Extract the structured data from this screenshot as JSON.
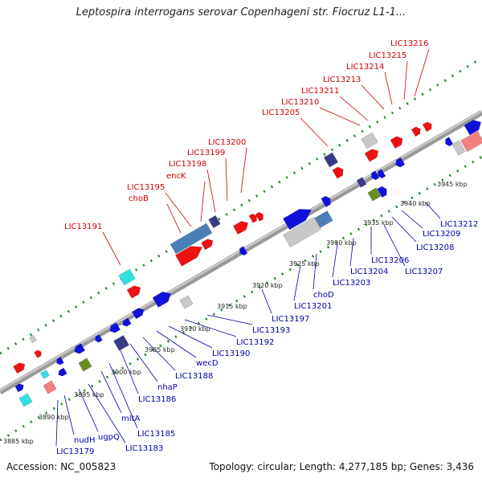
{
  "title": "Leptospira interrogans serovar Copenhageni str. Fiocruz L1-1...",
  "footer": {
    "accession": "Accession: NC_005823",
    "topology": "Topology: circular; Length: 4,277,185 bp; Genes: 3,436"
  },
  "colors": {
    "forward_label": "#cc0000",
    "reverse_label": "#0000aa",
    "backbone": "#999999",
    "tick": "#1a8a1a",
    "gene_red": "#ee1111",
    "gene_blue": "#1010dd",
    "gene_steel": "#4a7fb5",
    "gene_silver": "#c8c8c8",
    "gene_cyan": "#33e0e0",
    "gene_olive": "#6b8e23",
    "gene_navy": "#3a3a8a",
    "gene_pink": "#f08080"
  },
  "scale_ticks": [
    "3885 kbp",
    "3890 kbp",
    "3895 kbp",
    "3900 kbp",
    "3905 kbp",
    "3910 kbp",
    "3915 kbp",
    "3920 kbp",
    "3925 kbp",
    "3930 kbp",
    "3935 kbp",
    "3940 kbp",
    "3945 kbp"
  ],
  "forward_labels": [
    "LIC13191",
    "choB",
    "LIC13195",
    "encK",
    "LIC13198",
    "LIC13199",
    "LIC13200",
    "LIC13205",
    "LIC13210",
    "LIC13211",
    "LIC13213",
    "LIC13214",
    "LIC13215",
    "LIC13216"
  ],
  "reverse_labels": [
    "LIC13179",
    "nudH",
    "ugpQ",
    "LIC13183",
    "mltA",
    "LIC13185",
    "LIC13186",
    "nhaP",
    "LIC13188",
    "wecD",
    "LIC13190",
    "LIC13192",
    "LIC13193",
    "LIC13197",
    "LIC13201",
    "choD",
    "LIC13203",
    "LIC13204",
    "LIC13206",
    "LIC13207",
    "LIC13208",
    "LIC13209",
    "LIC13212"
  ]
}
